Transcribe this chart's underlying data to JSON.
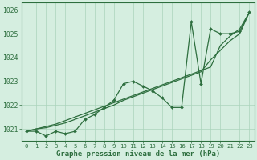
{
  "title": "Graphe pression niveau de la mer (hPa)",
  "background_color": "#d5eee0",
  "grid_color": "#aad4bb",
  "line_color": "#2d6e3e",
  "marker_color": "#2d6e3e",
  "xlim": [
    -0.5,
    23.5
  ],
  "ylim": [
    1020.5,
    1026.3
  ],
  "yticks": [
    1021,
    1022,
    1023,
    1024,
    1025,
    1026
  ],
  "xticks": [
    0,
    1,
    2,
    3,
    4,
    5,
    6,
    7,
    8,
    9,
    10,
    11,
    12,
    13,
    14,
    15,
    16,
    17,
    18,
    19,
    20,
    21,
    22,
    23
  ],
  "series_main": [
    1020.9,
    1020.9,
    1020.7,
    1020.9,
    1020.8,
    1020.9,
    1021.4,
    1021.6,
    1021.9,
    1022.2,
    1022.9,
    1023.0,
    1022.8,
    1022.6,
    1022.3,
    1021.9,
    1021.9,
    1025.5,
    1022.9,
    1025.2,
    1025.0,
    1025.0,
    1025.1,
    1025.9
  ],
  "series_trend1": [
    1020.9,
    1021.0,
    1021.1,
    1021.2,
    1021.35,
    1021.5,
    1021.65,
    1021.8,
    1021.95,
    1022.1,
    1022.25,
    1022.4,
    1022.55,
    1022.7,
    1022.85,
    1023.0,
    1023.15,
    1023.3,
    1023.45,
    1023.6,
    1024.5,
    1024.9,
    1025.2,
    1025.9
  ],
  "series_trend2": [
    1020.9,
    1021.0,
    1021.05,
    1021.15,
    1021.25,
    1021.4,
    1021.55,
    1021.7,
    1021.85,
    1022.0,
    1022.2,
    1022.35,
    1022.5,
    1022.65,
    1022.8,
    1022.95,
    1023.1,
    1023.25,
    1023.4,
    1023.9,
    1024.3,
    1024.7,
    1025.0,
    1025.9
  ],
  "xlabel_fontsize": 6.5,
  "tick_fontsize": 6.0
}
